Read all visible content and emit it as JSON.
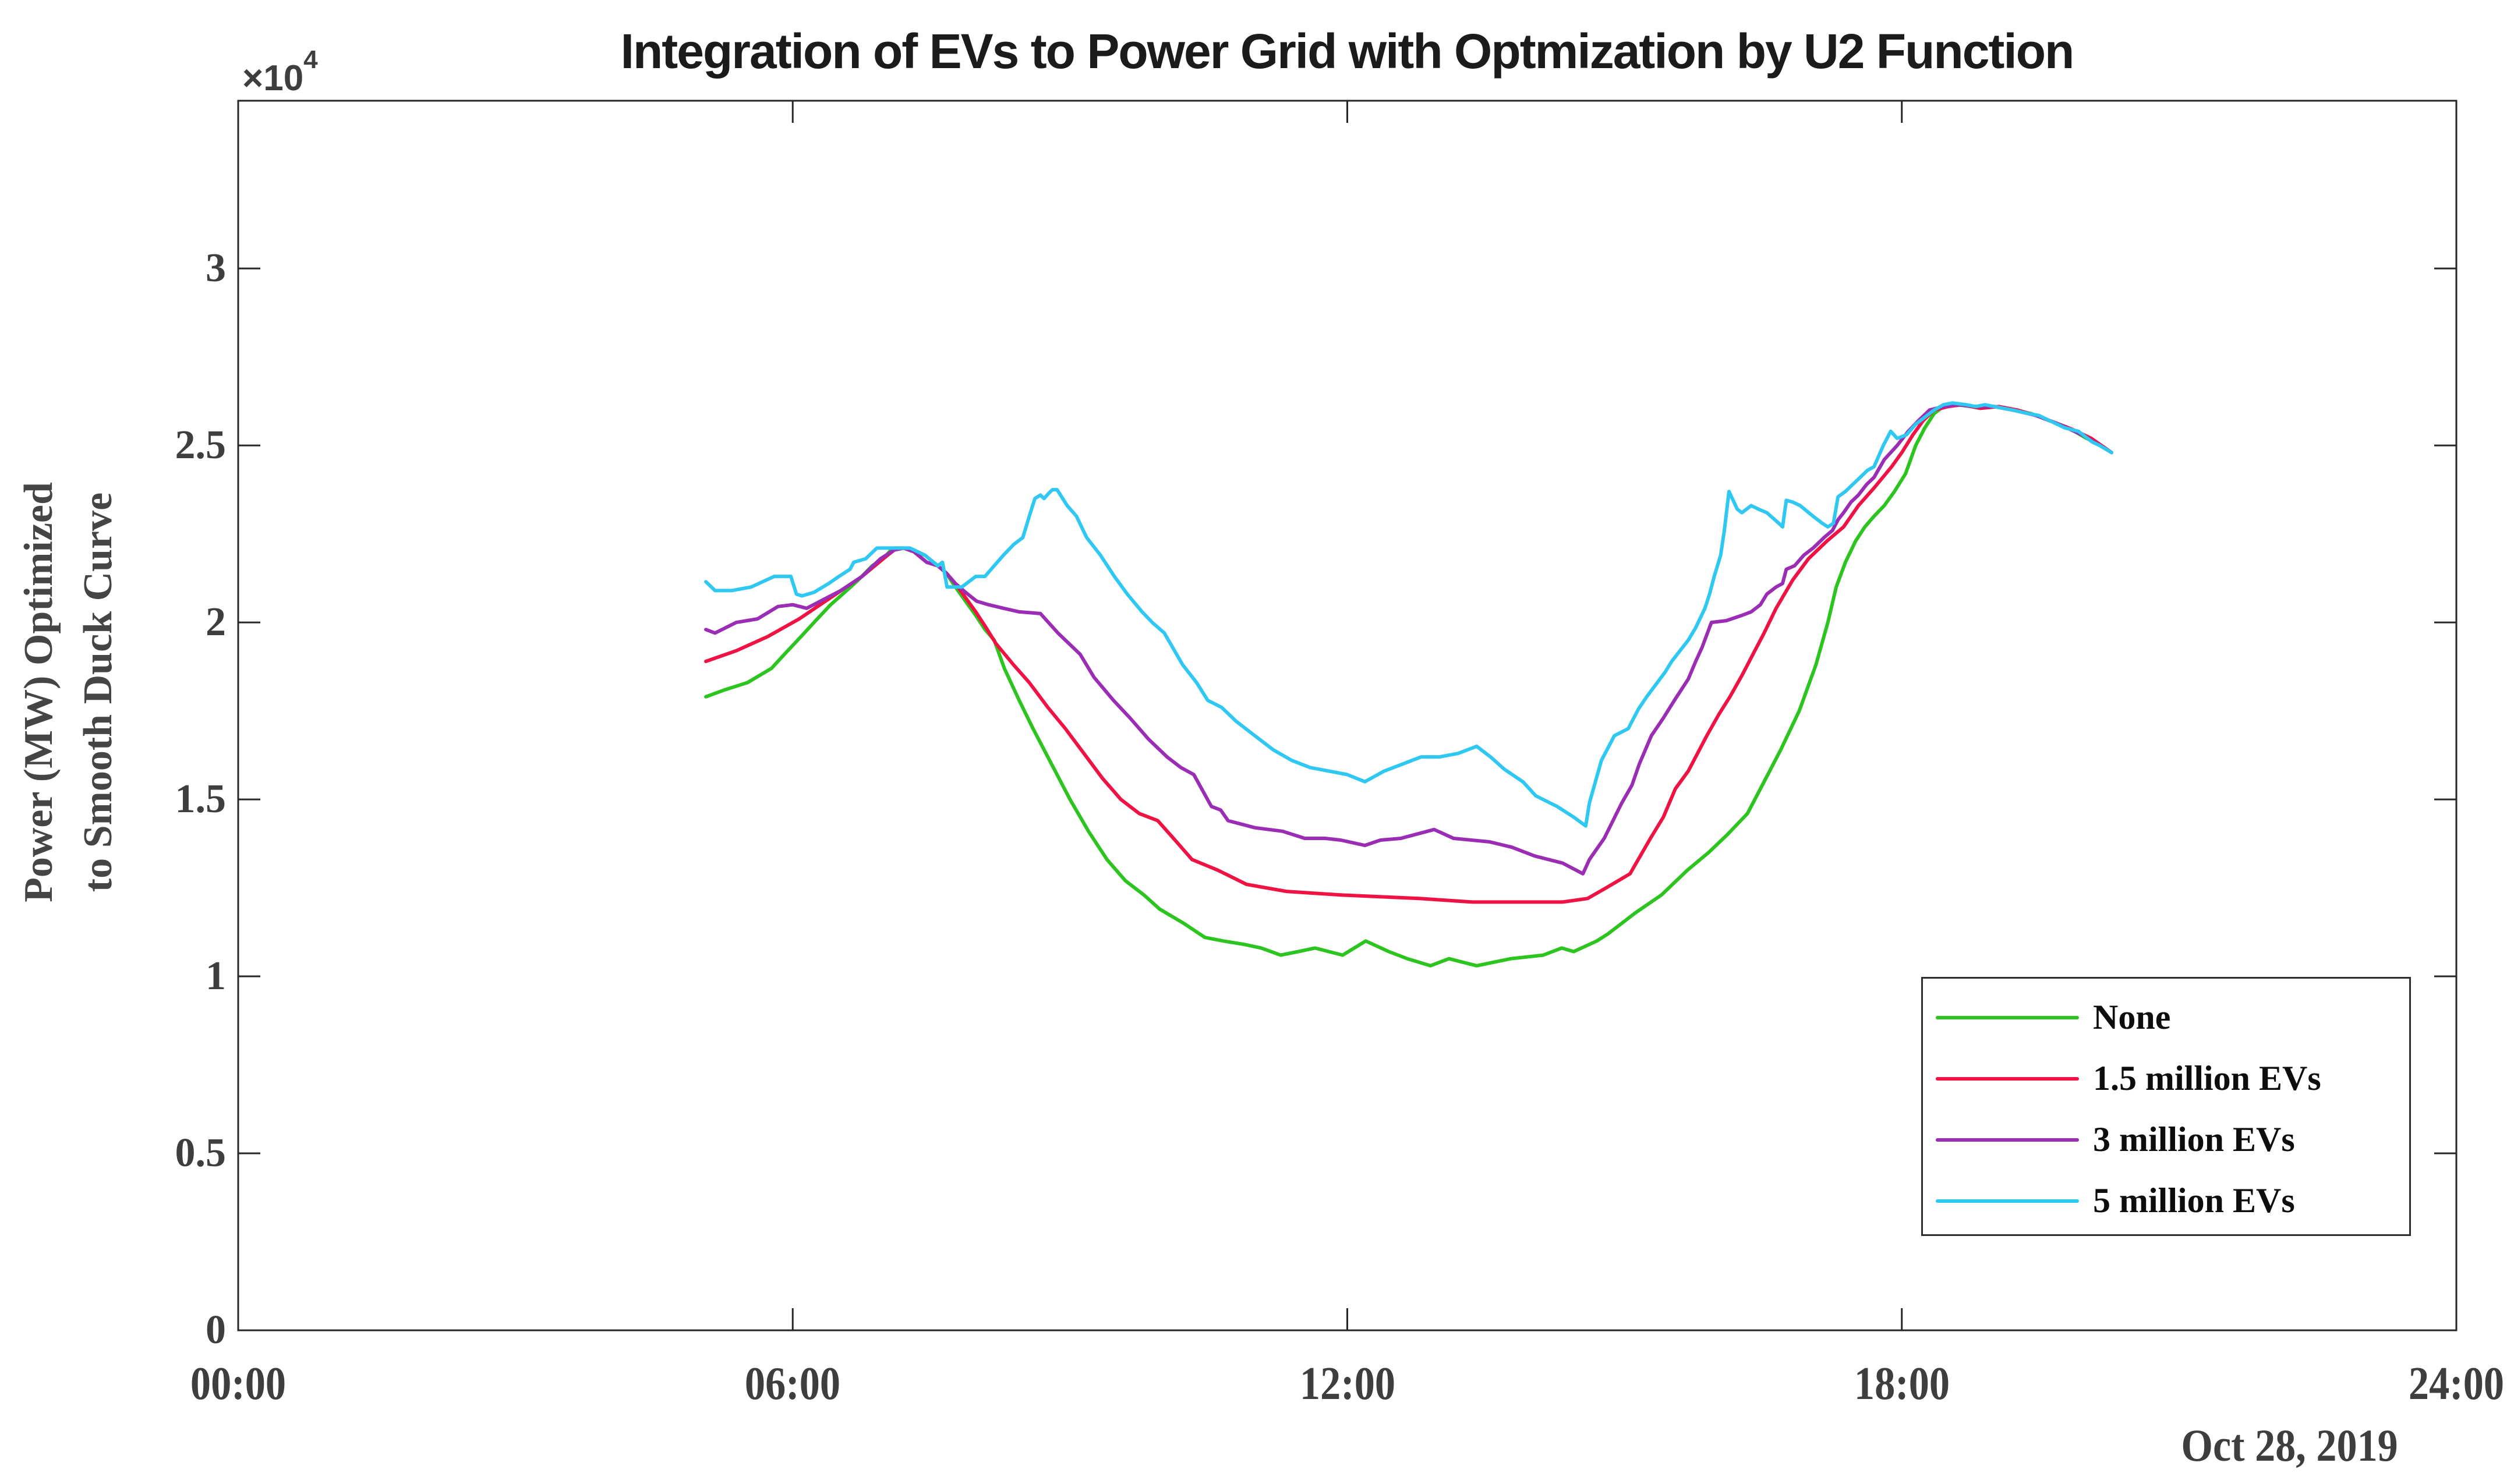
{
  "axes": {
    "x": {
      "min_hour": 0,
      "max_hour": 24,
      "tick_hours": [
        0,
        6,
        12,
        18,
        24
      ],
      "tick_labels": [
        "00:00",
        "06:00",
        "12:00",
        "18:00",
        "24:00"
      ],
      "date_label": "Oct 28, 2019"
    },
    "y": {
      "min": 0,
      "max": 3.474,
      "tick_values": [
        0,
        0.5,
        1,
        1.5,
        2,
        2.5,
        3
      ],
      "tick_labels": [
        "0",
        "0.5",
        "1",
        "1.5",
        "2",
        "2.5",
        "3"
      ],
      "offset_base": "×10",
      "offset_exponent": "4",
      "label_line1": "Power (MW) Optimized",
      "label_line2": "to Smooth Duck Curve"
    },
    "frame_color": "#262626",
    "tick_label_color": "#3e3e3e"
  },
  "chart_data": {
    "type": "line",
    "title": "Integration of EVs to Power Grid with Optmization by U2 Function",
    "xlabel": "",
    "ylabel": "Power (MW) Optimized to Smooth Duck Curve",
    "x_unit": "hours since 00:00",
    "xlim": [
      0,
      24
    ],
    "ylim": [
      0,
      34740
    ],
    "y_unit": "1e4 MW (axis multiplier ×10^4)",
    "grid": "off",
    "legend_position": "inside lower right",
    "series": [
      {
        "name": "None",
        "color": "#2cc41e",
        "x": [
          5.06,
          5.27,
          5.51,
          5.77,
          5.91,
          6.09,
          6.23,
          6.41,
          6.54,
          6.71,
          6.86,
          6.98,
          7.08,
          7.2,
          7.31,
          7.43,
          7.57,
          7.66,
          7.76,
          7.87,
          7.98,
          8.08,
          8.18,
          8.29,
          8.45,
          8.6,
          8.8,
          9.0,
          9.2,
          9.4,
          9.6,
          9.8,
          9.97,
          10.23,
          10.46,
          10.66,
          10.89,
          11.07,
          11.28,
          11.47,
          11.65,
          11.95,
          12.2,
          12.45,
          12.65,
          12.9,
          13.1,
          13.4,
          13.77,
          14.12,
          14.32,
          14.45,
          14.7,
          14.82,
          15.12,
          15.4,
          15.68,
          15.91,
          16.11,
          16.33,
          16.49,
          16.69,
          16.89,
          17.07,
          17.2,
          17.29,
          17.39,
          17.5,
          17.6,
          17.7,
          17.81,
          17.92,
          18.04,
          18.15,
          18.25,
          18.35,
          18.45,
          18.6,
          18.75,
          18.85,
          19.0,
          19.2,
          19.4,
          19.6,
          19.8,
          20.0,
          20.15,
          20.27
        ],
        "y": [
          1.79,
          1.81,
          1.83,
          1.87,
          1.91,
          1.96,
          2.0,
          2.05,
          2.08,
          2.12,
          2.16,
          2.18,
          2.21,
          2.21,
          2.2,
          2.19,
          2.16,
          2.14,
          2.1,
          2.06,
          2.02,
          1.98,
          1.95,
          1.87,
          1.78,
          1.7,
          1.6,
          1.5,
          1.41,
          1.33,
          1.27,
          1.23,
          1.19,
          1.15,
          1.11,
          1.1,
          1.09,
          1.08,
          1.06,
          1.07,
          1.08,
          1.06,
          1.1,
          1.07,
          1.05,
          1.03,
          1.05,
          1.03,
          1.05,
          1.06,
          1.08,
          1.07,
          1.1,
          1.12,
          1.18,
          1.23,
          1.3,
          1.35,
          1.4,
          1.46,
          1.54,
          1.64,
          1.75,
          1.88,
          2.0,
          2.1,
          2.17,
          2.23,
          2.27,
          2.3,
          2.33,
          2.37,
          2.42,
          2.5,
          2.55,
          2.59,
          2.61,
          2.615,
          2.61,
          2.605,
          2.61,
          2.6,
          2.59,
          2.57,
          2.55,
          2.52,
          2.5,
          2.48
        ]
      },
      {
        "name": "1.5 million EVs",
        "color": "#ef1243",
        "x": [
          5.06,
          5.39,
          5.73,
          6.07,
          6.41,
          6.75,
          6.98,
          7.1,
          7.2,
          7.31,
          7.45,
          7.57,
          7.66,
          7.76,
          7.87,
          7.98,
          8.08,
          8.2,
          8.39,
          8.56,
          8.76,
          8.95,
          9.15,
          9.35,
          9.55,
          9.75,
          9.95,
          10.12,
          10.32,
          10.6,
          10.91,
          11.34,
          11.93,
          12.78,
          13.35,
          13.92,
          14.33,
          14.6,
          14.8,
          15.06,
          15.28,
          15.42,
          15.55,
          15.69,
          15.89,
          16.02,
          16.14,
          16.27,
          16.39,
          16.51,
          16.64,
          16.82,
          16.99,
          17.19,
          17.37,
          17.53,
          17.7,
          17.89,
          18.0,
          18.12,
          18.23,
          18.35,
          18.5,
          18.65,
          18.85,
          19.05,
          19.25,
          19.45,
          19.65,
          19.85,
          20.05,
          20.27
        ],
        "y": [
          1.89,
          1.92,
          1.96,
          2.01,
          2.07,
          2.13,
          2.18,
          2.205,
          2.21,
          2.2,
          2.17,
          2.16,
          2.14,
          2.11,
          2.07,
          2.03,
          1.99,
          1.94,
          1.88,
          1.83,
          1.76,
          1.7,
          1.63,
          1.56,
          1.5,
          1.46,
          1.44,
          1.39,
          1.33,
          1.3,
          1.26,
          1.24,
          1.23,
          1.22,
          1.21,
          1.21,
          1.21,
          1.22,
          1.25,
          1.29,
          1.39,
          1.45,
          1.53,
          1.58,
          1.68,
          1.74,
          1.79,
          1.85,
          1.91,
          1.97,
          2.04,
          2.12,
          2.18,
          2.23,
          2.27,
          2.33,
          2.38,
          2.44,
          2.48,
          2.53,
          2.57,
          2.6,
          2.61,
          2.615,
          2.605,
          2.61,
          2.6,
          2.585,
          2.565,
          2.545,
          2.52,
          2.48
        ]
      },
      {
        "name": "3 million EVs",
        "color": "#9b2db4",
        "x": [
          5.06,
          5.16,
          5.39,
          5.62,
          5.84,
          6.0,
          6.15,
          6.3,
          6.52,
          6.75,
          6.95,
          7.1,
          7.2,
          7.31,
          7.45,
          7.57,
          7.66,
          7.76,
          7.87,
          7.99,
          8.12,
          8.28,
          8.45,
          8.68,
          8.87,
          9.11,
          9.26,
          9.47,
          9.65,
          9.85,
          10.05,
          10.2,
          10.34,
          10.53,
          10.63,
          10.71,
          11.0,
          11.3,
          11.54,
          11.76,
          11.93,
          12.19,
          12.36,
          12.58,
          12.94,
          13.15,
          13.54,
          13.78,
          14.03,
          14.33,
          14.55,
          14.62,
          14.78,
          14.97,
          15.08,
          15.16,
          15.29,
          15.42,
          15.54,
          15.69,
          15.77,
          15.84,
          15.94,
          16.1,
          16.27,
          16.37,
          16.47,
          16.54,
          16.64,
          16.71,
          16.75,
          16.84,
          16.94,
          17.04,
          17.16,
          17.25,
          17.31,
          17.37,
          17.45,
          17.53,
          17.62,
          17.7,
          17.81,
          17.95,
          18.07,
          18.18,
          18.3,
          18.45,
          18.6,
          18.8,
          19.0,
          19.2,
          19.45,
          19.7,
          19.95,
          20.27
        ],
        "y": [
          1.98,
          1.97,
          2.0,
          2.01,
          2.045,
          2.05,
          2.04,
          2.06,
          2.09,
          2.13,
          2.18,
          2.205,
          2.21,
          2.2,
          2.17,
          2.16,
          2.14,
          2.11,
          2.085,
          2.06,
          2.05,
          2.04,
          2.03,
          2.025,
          1.97,
          1.91,
          1.845,
          1.78,
          1.73,
          1.67,
          1.62,
          1.59,
          1.57,
          1.48,
          1.47,
          1.44,
          1.42,
          1.41,
          1.39,
          1.39,
          1.385,
          1.37,
          1.385,
          1.39,
          1.415,
          1.39,
          1.38,
          1.365,
          1.34,
          1.32,
          1.29,
          1.33,
          1.39,
          1.49,
          1.54,
          1.6,
          1.68,
          1.73,
          1.78,
          1.84,
          1.89,
          1.93,
          2.0,
          2.005,
          2.02,
          2.03,
          2.05,
          2.08,
          2.1,
          2.11,
          2.15,
          2.16,
          2.19,
          2.21,
          2.24,
          2.26,
          2.29,
          2.31,
          2.34,
          2.36,
          2.39,
          2.41,
          2.46,
          2.5,
          2.54,
          2.57,
          2.6,
          2.61,
          2.615,
          2.61,
          2.61,
          2.6,
          2.585,
          2.56,
          2.53,
          2.48
        ]
      },
      {
        "name": "5 million EVs",
        "color": "#2fc8f2",
        "x": [
          5.06,
          5.16,
          5.34,
          5.55,
          5.8,
          5.98,
          6.04,
          6.1,
          6.23,
          6.39,
          6.5,
          6.62,
          6.66,
          6.79,
          6.91,
          7.1,
          7.27,
          7.43,
          7.57,
          7.62,
          7.67,
          7.83,
          7.98,
          8.08,
          8.18,
          8.28,
          8.39,
          8.49,
          8.56,
          8.62,
          8.68,
          8.72,
          8.77,
          8.81,
          8.86,
          8.97,
          9.07,
          9.18,
          9.33,
          9.48,
          9.62,
          9.78,
          9.89,
          10.02,
          10.22,
          10.37,
          10.49,
          10.64,
          10.8,
          11.0,
          11.2,
          11.4,
          11.6,
          11.8,
          12.0,
          12.19,
          12.4,
          12.6,
          12.8,
          13.0,
          13.2,
          13.4,
          13.55,
          13.7,
          13.9,
          14.04,
          14.27,
          14.45,
          14.58,
          14.62,
          14.75,
          14.89,
          15.04,
          15.15,
          15.24,
          15.44,
          15.51,
          15.69,
          15.77,
          15.87,
          15.92,
          15.97,
          16.04,
          16.08,
          16.13,
          16.22,
          16.27,
          16.37,
          16.45,
          16.54,
          16.67,
          16.71,
          16.75,
          16.82,
          16.9,
          17.04,
          17.14,
          17.2,
          17.26,
          17.31,
          17.39,
          17.47,
          17.55,
          17.63,
          17.7,
          17.8,
          17.88,
          17.95,
          18.05,
          18.15,
          18.25,
          18.35,
          18.45,
          18.55,
          18.7,
          18.8,
          18.9,
          19.0,
          19.1,
          19.2,
          19.37,
          19.48,
          19.6,
          19.76,
          19.91,
          20.06,
          20.14,
          20.27
        ],
        "y": [
          2.115,
          2.09,
          2.09,
          2.1,
          2.13,
          2.13,
          2.08,
          2.075,
          2.085,
          2.11,
          2.13,
          2.15,
          2.17,
          2.18,
          2.21,
          2.21,
          2.21,
          2.19,
          2.16,
          2.17,
          2.1,
          2.1,
          2.13,
          2.13,
          2.16,
          2.19,
          2.22,
          2.24,
          2.3,
          2.35,
          2.36,
          2.35,
          2.365,
          2.375,
          2.375,
          2.33,
          2.3,
          2.24,
          2.19,
          2.13,
          2.08,
          2.03,
          2.0,
          1.97,
          1.88,
          1.83,
          1.78,
          1.76,
          1.72,
          1.68,
          1.64,
          1.61,
          1.59,
          1.58,
          1.57,
          1.55,
          1.58,
          1.6,
          1.62,
          1.62,
          1.63,
          1.65,
          1.62,
          1.585,
          1.55,
          1.51,
          1.48,
          1.45,
          1.425,
          1.49,
          1.61,
          1.68,
          1.7,
          1.755,
          1.79,
          1.86,
          1.89,
          1.95,
          1.985,
          2.04,
          2.08,
          2.13,
          2.19,
          2.26,
          2.37,
          2.32,
          2.31,
          2.33,
          2.32,
          2.31,
          2.28,
          2.27,
          2.345,
          2.34,
          2.33,
          2.3,
          2.28,
          2.27,
          2.28,
          2.355,
          2.37,
          2.39,
          2.41,
          2.43,
          2.44,
          2.5,
          2.54,
          2.52,
          2.53,
          2.56,
          2.58,
          2.6,
          2.615,
          2.62,
          2.615,
          2.61,
          2.615,
          2.61,
          2.605,
          2.6,
          2.59,
          2.585,
          2.57,
          2.55,
          2.54,
          2.51,
          2.5,
          2.48
        ]
      }
    ]
  }
}
